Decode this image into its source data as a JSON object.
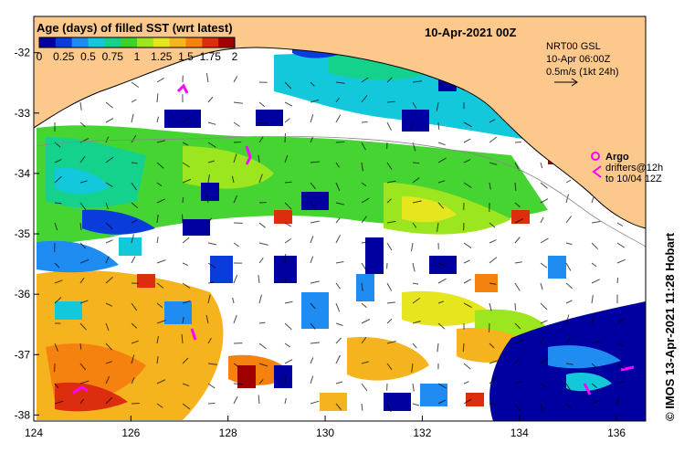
{
  "map": {
    "title": "10-Apr-2021 00Z",
    "legend_title": "Age (days) of filled SST (wrt latest)",
    "legend_ticks": [
      "0",
      "0.25",
      "0.5",
      "0.75",
      "1",
      "1.25",
      "1.5",
      "1.75",
      "2"
    ],
    "legend_colors": [
      "#0000a0",
      "#0a3cdc",
      "#1e8cf0",
      "#14c8dc",
      "#14d28c",
      "#3cd228",
      "#9be61e",
      "#e6e61e",
      "#f5b41e",
      "#f5820f",
      "#dc2d0f",
      "#a00000"
    ],
    "current_note": [
      "NRT00 GSL",
      "10-Apr 06:00Z",
      "0.5m/s (1kt 24h)"
    ],
    "argo_label": "Argo",
    "drifters_note": [
      "drifters@12h",
      "to 10/04 12Z"
    ],
    "credit": "© IMOS 13-Apr-2021 11:28 Hobart",
    "x_ticks": [
      "124",
      "126",
      "128",
      "130",
      "132",
      "134",
      "136"
    ],
    "y_ticks": [
      "-32",
      "-33",
      "-34",
      "-35",
      "-36",
      "-37",
      "-38"
    ],
    "land_color": "#fcc88c",
    "lon_range": [
      124,
      136.6
    ],
    "lat_range": [
      -38.1,
      -31.4
    ]
  }
}
